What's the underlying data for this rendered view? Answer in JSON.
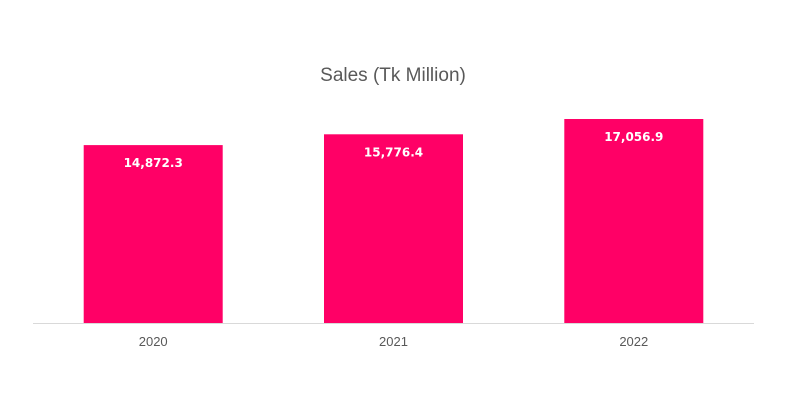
{
  "chart_data": {
    "type": "bar",
    "title": "Sales (Tk Million)",
    "xlabel": "",
    "ylabel": "",
    "categories": [
      "2020",
      "2021",
      "2022"
    ],
    "values": [
      14872.3,
      15776.4,
      17056.9
    ],
    "data_labels": [
      "14,872.3",
      "15,776.4",
      "17,056.9"
    ],
    "ylim": [
      0,
      18000
    ],
    "grid": false,
    "legend": "none",
    "bar_color": "#FF0066",
    "axis_color": "#D9D9D9",
    "text_color": "#595959",
    "label_color": "#FFFFFF"
  }
}
